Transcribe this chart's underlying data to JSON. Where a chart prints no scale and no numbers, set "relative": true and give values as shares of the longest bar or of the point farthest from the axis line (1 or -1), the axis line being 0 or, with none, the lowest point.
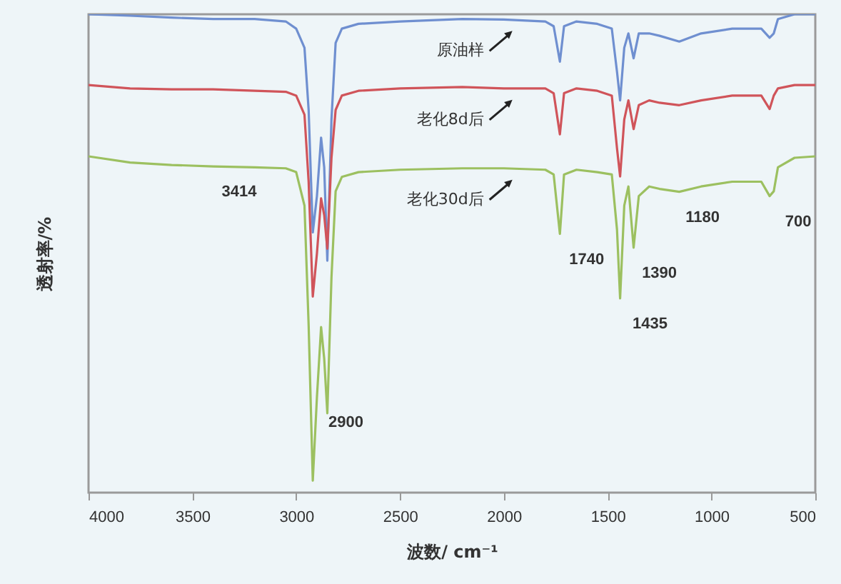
{
  "chart_data": {
    "type": "line",
    "xlabel": "波数/ cm⁻¹",
    "ylabel": "透射率/%",
    "relative": true,
    "xlim": [
      4000,
      500
    ],
    "xticks": [
      4000,
      3500,
      3000,
      2500,
      2000,
      1500,
      1000,
      500
    ],
    "x": [
      4000,
      3800,
      3600,
      3400,
      3200,
      3050,
      3000,
      2960,
      2940,
      2920,
      2900,
      2880,
      2865,
      2850,
      2830,
      2810,
      2780,
      2700,
      2500,
      2200,
      2000,
      1800,
      1760,
      1730,
      1710,
      1650,
      1550,
      1480,
      1455,
      1440,
      1420,
      1400,
      1375,
      1350,
      1300,
      1250,
      1155,
      1050,
      900,
      760,
      720,
      700,
      680,
      600,
      500
    ],
    "series": [
      {
        "name": "原油样",
        "color": "#6f8fd0",
        "values": [
          1.0,
          0.997,
          0.993,
          0.99,
          0.99,
          0.985,
          0.97,
          0.93,
          0.8,
          0.544,
          0.62,
          0.742,
          0.68,
          0.485,
          0.78,
          0.94,
          0.97,
          0.98,
          0.985,
          0.99,
          0.989,
          0.985,
          0.975,
          0.901,
          0.975,
          0.985,
          0.98,
          0.97,
          0.88,
          0.82,
          0.93,
          0.96,
          0.908,
          0.96,
          0.96,
          0.955,
          0.943,
          0.96,
          0.97,
          0.97,
          0.951,
          0.96,
          0.99,
          1.0,
          1.0
        ]
      },
      {
        "name": "老化8d后",
        "color": "#d0545a",
        "values": [
          0.852,
          0.845,
          0.843,
          0.843,
          0.84,
          0.838,
          0.83,
          0.79,
          0.65,
          0.41,
          0.5,
          0.615,
          0.58,
          0.51,
          0.7,
          0.8,
          0.83,
          0.84,
          0.845,
          0.848,
          0.845,
          0.845,
          0.835,
          0.749,
          0.835,
          0.845,
          0.84,
          0.83,
          0.72,
          0.661,
          0.78,
          0.82,
          0.76,
          0.81,
          0.82,
          0.815,
          0.81,
          0.82,
          0.83,
          0.83,
          0.802,
          0.83,
          0.845,
          0.852,
          0.852
        ]
      },
      {
        "name": "老化30d后",
        "color": "#9cc060",
        "values": [
          0.703,
          0.69,
          0.685,
          0.682,
          0.68,
          0.678,
          0.67,
          0.6,
          0.35,
          0.025,
          0.2,
          0.346,
          0.28,
          0.166,
          0.45,
          0.63,
          0.66,
          0.67,
          0.675,
          0.678,
          0.678,
          0.675,
          0.665,
          0.541,
          0.665,
          0.675,
          0.67,
          0.665,
          0.55,
          0.406,
          0.6,
          0.64,
          0.512,
          0.62,
          0.64,
          0.635,
          0.629,
          0.64,
          0.65,
          0.65,
          0.62,
          0.63,
          0.68,
          0.7,
          0.703
        ]
      }
    ],
    "annotations": [
      {
        "text": "3414",
        "x": 3414,
        "y": 0.682
      },
      {
        "text": "2900",
        "x": 2900,
        "y": 0.2
      },
      {
        "text": "1740",
        "x": 1740,
        "y": 0.541
      },
      {
        "text": "1435",
        "x": 1435,
        "y": 0.406
      },
      {
        "text": "1390",
        "x": 1390,
        "y": 0.512
      },
      {
        "text": "1180",
        "x": 1180,
        "y": 0.629
      },
      {
        "text": "700",
        "x": 700,
        "y": 0.62
      }
    ]
  }
}
